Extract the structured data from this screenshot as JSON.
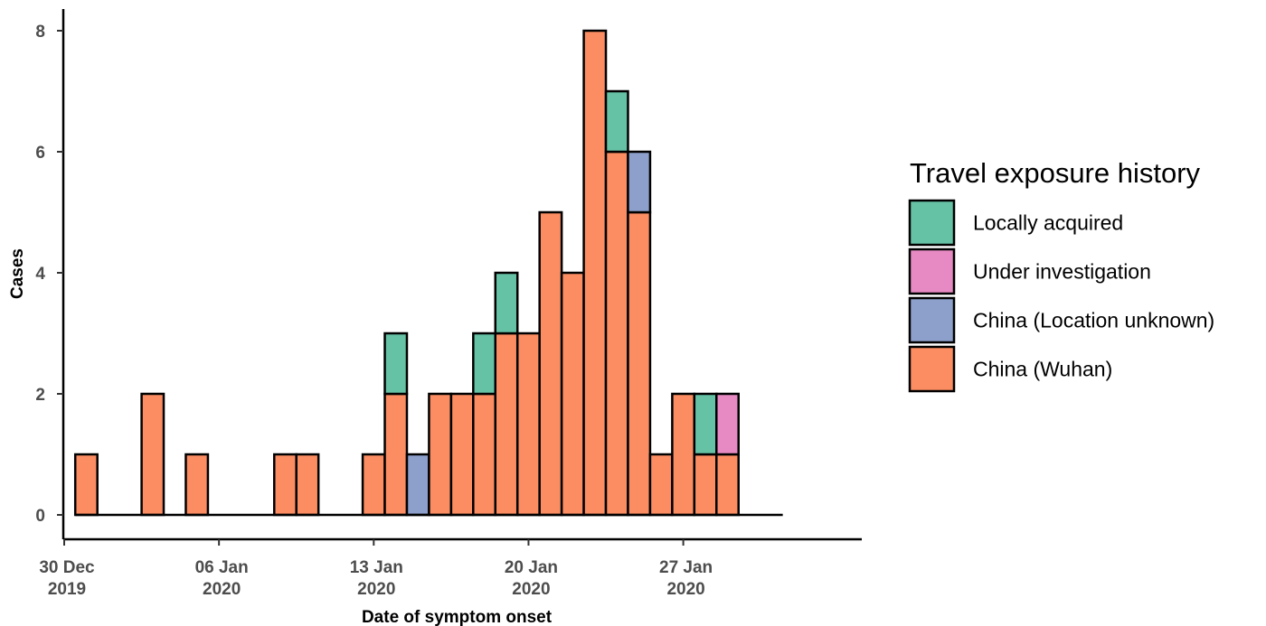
{
  "chart_data": {
    "type": "bar",
    "stacked": true,
    "xlabel": "Date of symptom onset",
    "ylabel": "Cases",
    "ylim": [
      0,
      8
    ],
    "y_ticks": [
      0,
      2,
      4,
      6,
      8
    ],
    "x_range": [
      "2019-12-30",
      "2020-02-01"
    ],
    "x_ticks": [
      {
        "date": "2019-12-30",
        "line1": "30 Dec",
        "line2": "2019"
      },
      {
        "date": "2020-01-06",
        "line1": "06 Jan",
        "line2": "2020"
      },
      {
        "date": "2020-01-13",
        "line1": "13 Jan",
        "line2": "2020"
      },
      {
        "date": "2020-01-20",
        "line1": "20 Jan",
        "line2": "2020"
      },
      {
        "date": "2020-01-27",
        "line1": "27 Jan",
        "line2": "2020"
      }
    ],
    "x": [
      "2019-12-31",
      "2020-01-01",
      "2020-01-02",
      "2020-01-03",
      "2020-01-04",
      "2020-01-05",
      "2020-01-06",
      "2020-01-07",
      "2020-01-08",
      "2020-01-09",
      "2020-01-10",
      "2020-01-11",
      "2020-01-12",
      "2020-01-13",
      "2020-01-14",
      "2020-01-15",
      "2020-01-16",
      "2020-01-17",
      "2020-01-18",
      "2020-01-19",
      "2020-01-20",
      "2020-01-21",
      "2020-01-22",
      "2020-01-23",
      "2020-01-24",
      "2020-01-25",
      "2020-01-26",
      "2020-01-27",
      "2020-01-28",
      "2020-01-29",
      "2020-01-30",
      "2020-01-31"
    ],
    "legend": {
      "title": "Travel exposure history",
      "position": "right"
    },
    "series": [
      {
        "name": "China (Wuhan)",
        "color": "#fc8d62",
        "values": [
          1,
          0,
          0,
          2,
          0,
          1,
          0,
          0,
          0,
          1,
          1,
          0,
          0,
          1,
          2,
          0,
          2,
          2,
          2,
          3,
          3,
          5,
          4,
          8,
          6,
          5,
          1,
          2,
          1,
          1,
          0,
          0
        ]
      },
      {
        "name": "China (Location unknown)",
        "color": "#8da0cb",
        "values": [
          0,
          0,
          0,
          0,
          0,
          0,
          0,
          0,
          0,
          0,
          0,
          0,
          0,
          0,
          0,
          1,
          0,
          0,
          0,
          0,
          0,
          0,
          0,
          0,
          0,
          1,
          0,
          0,
          0,
          0,
          0,
          0
        ]
      },
      {
        "name": "Under investigation",
        "color": "#e78ac3",
        "values": [
          0,
          0,
          0,
          0,
          0,
          0,
          0,
          0,
          0,
          0,
          0,
          0,
          0,
          0,
          0,
          0,
          0,
          0,
          0,
          0,
          0,
          0,
          0,
          0,
          0,
          0,
          0,
          0,
          0,
          1,
          0,
          0
        ]
      },
      {
        "name": "Locally acquired",
        "color": "#66c2a5",
        "values": [
          0,
          0,
          0,
          0,
          0,
          0,
          0,
          0,
          0,
          0,
          0,
          0,
          0,
          0,
          1,
          0,
          0,
          0,
          1,
          1,
          0,
          0,
          0,
          0,
          1,
          0,
          0,
          0,
          1,
          0,
          0,
          0
        ]
      }
    ],
    "legend_order": [
      "Locally acquired",
      "Under investigation",
      "China (Location unknown)",
      "China (Wuhan)"
    ]
  }
}
